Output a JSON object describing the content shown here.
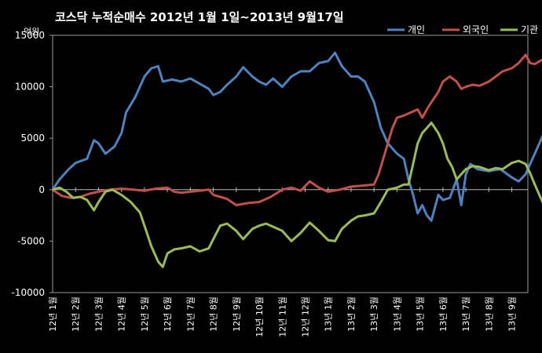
{
  "chart_data": {
    "type": "line",
    "title": "코스닥  누적순매수 2012년 1월 1일~2013년 9월17일",
    "unit": "억원",
    "x_categories": [
      "12년 1월",
      "12년 2월",
      "12년 3월",
      "12년 4월",
      "12년 5월",
      "12년 6월",
      "12년 7월",
      "12년 8월",
      "12년 9월",
      "12년 10월",
      "12년 11월",
      "12년 12월",
      "13년 1월",
      "13년 2월",
      "13년 3월",
      "13년 4월",
      "13년 5월",
      "13년 6월",
      "13년 7월",
      "13년 8월",
      "13년 9월"
    ],
    "ylim": [
      -10000,
      15000
    ],
    "yticks": [
      15000,
      10000,
      5000,
      0,
      -5000,
      -10000
    ],
    "grid": false,
    "legend_position": "top-right",
    "series": [
      {
        "name": "개인",
        "color": "#4f81bd",
        "points": [
          [
            0,
            0
          ],
          [
            0.3,
            1000
          ],
          [
            0.7,
            2000
          ],
          [
            1,
            2600
          ],
          [
            1.5,
            3000
          ],
          [
            1.8,
            4800
          ],
          [
            2,
            4500
          ],
          [
            2.3,
            3500
          ],
          [
            2.7,
            4200
          ],
          [
            3,
            5500
          ],
          [
            3.2,
            7500
          ],
          [
            3.6,
            9000
          ],
          [
            4,
            11000
          ],
          [
            4.3,
            11800
          ],
          [
            4.6,
            12000
          ],
          [
            4.8,
            10500
          ],
          [
            5.2,
            10700
          ],
          [
            5.6,
            10500
          ],
          [
            6,
            10800
          ],
          [
            6.4,
            10300
          ],
          [
            6.8,
            9800
          ],
          [
            7,
            9200
          ],
          [
            7.3,
            9500
          ],
          [
            7.6,
            10200
          ],
          [
            8,
            11000
          ],
          [
            8.3,
            11900
          ],
          [
            8.7,
            11000
          ],
          [
            9,
            10500
          ],
          [
            9.3,
            10200
          ],
          [
            9.6,
            10800
          ],
          [
            10,
            10000
          ],
          [
            10.4,
            11000
          ],
          [
            10.8,
            11500
          ],
          [
            11.2,
            11500
          ],
          [
            11.6,
            12300
          ],
          [
            12,
            12500
          ],
          [
            12.3,
            13300
          ],
          [
            12.6,
            12000
          ],
          [
            13,
            11000
          ],
          [
            13.3,
            11000
          ],
          [
            13.6,
            10500
          ],
          [
            14,
            8500
          ],
          [
            14.3,
            6000
          ],
          [
            14.6,
            4500
          ],
          [
            15,
            3500
          ],
          [
            15.3,
            3000
          ],
          [
            15.5,
            1000
          ],
          [
            15.7,
            -500
          ],
          [
            15.9,
            -2300
          ],
          [
            16.1,
            -1500
          ],
          [
            16.3,
            -2500
          ],
          [
            16.5,
            -3000
          ],
          [
            16.8,
            -500
          ],
          [
            17,
            -1000
          ],
          [
            17.3,
            -800
          ],
          [
            17.6,
            1000
          ],
          [
            17.8,
            -1500
          ],
          [
            18,
            1500
          ],
          [
            18.2,
            2500
          ],
          [
            18.5,
            2000
          ],
          [
            19,
            1800
          ],
          [
            19.5,
            2000
          ],
          [
            20,
            1200
          ],
          [
            20.3,
            800
          ],
          [
            20.6,
            1500
          ],
          [
            20.8,
            2500
          ],
          [
            21,
            3500
          ],
          [
            21.3,
            5000
          ],
          [
            21.5,
            6000
          ],
          [
            21.7,
            5500
          ]
        ]
      },
      {
        "name": "외국인",
        "color": "#c0504d",
        "points": [
          [
            0,
            0
          ],
          [
            0.4,
            -600
          ],
          [
            0.8,
            -800
          ],
          [
            1.2,
            -700
          ],
          [
            1.6,
            -400
          ],
          [
            2,
            -200
          ],
          [
            2.5,
            0
          ],
          [
            3,
            100
          ],
          [
            3.5,
            0
          ],
          [
            4,
            -100
          ],
          [
            4.5,
            100
          ],
          [
            5,
            200
          ],
          [
            5.3,
            -200
          ],
          [
            5.6,
            -300
          ],
          [
            6,
            -200
          ],
          [
            6.4,
            -100
          ],
          [
            6.8,
            0
          ],
          [
            7,
            -500
          ],
          [
            7.3,
            -700
          ],
          [
            7.6,
            -900
          ],
          [
            8,
            -1500
          ],
          [
            8.5,
            -1300
          ],
          [
            9,
            -1200
          ],
          [
            9.5,
            -700
          ],
          [
            10,
            0
          ],
          [
            10.4,
            200
          ],
          [
            10.8,
            -100
          ],
          [
            11.2,
            800
          ],
          [
            11.6,
            200
          ],
          [
            12,
            -200
          ],
          [
            12.5,
            0
          ],
          [
            13,
            300
          ],
          [
            13.5,
            400
          ],
          [
            14,
            500
          ],
          [
            14.2,
            1500
          ],
          [
            14.4,
            3000
          ],
          [
            14.6,
            4500
          ],
          [
            14.8,
            6000
          ],
          [
            15,
            7000
          ],
          [
            15.3,
            7200
          ],
          [
            15.6,
            7500
          ],
          [
            15.9,
            7800
          ],
          [
            16.1,
            7000
          ],
          [
            16.3,
            7800
          ],
          [
            16.5,
            8500
          ],
          [
            16.8,
            9500
          ],
          [
            17,
            10500
          ],
          [
            17.3,
            11000
          ],
          [
            17.6,
            10500
          ],
          [
            17.8,
            9800
          ],
          [
            18,
            10000
          ],
          [
            18.3,
            10200
          ],
          [
            18.6,
            10100
          ],
          [
            19,
            10500
          ],
          [
            19.3,
            11000
          ],
          [
            19.6,
            11500
          ],
          [
            20,
            11800
          ],
          [
            20.3,
            12300
          ],
          [
            20.6,
            13100
          ],
          [
            20.8,
            12300
          ],
          [
            21,
            12200
          ],
          [
            21.3,
            12600
          ],
          [
            21.6,
            12800
          ],
          [
            21.7,
            12900
          ]
        ]
      },
      {
        "name": "기관",
        "color": "#9bbb59",
        "points": [
          [
            0,
            0
          ],
          [
            0.3,
            200
          ],
          [
            0.6,
            -200
          ],
          [
            0.9,
            -800
          ],
          [
            1.2,
            -700
          ],
          [
            1.5,
            -1000
          ],
          [
            1.8,
            -2000
          ],
          [
            2,
            -1200
          ],
          [
            2.3,
            -200
          ],
          [
            2.6,
            0
          ],
          [
            3,
            -500
          ],
          [
            3.4,
            -1200
          ],
          [
            3.8,
            -2200
          ],
          [
            4,
            -3500
          ],
          [
            4.3,
            -5500
          ],
          [
            4.6,
            -7000
          ],
          [
            4.8,
            -7500
          ],
          [
            5,
            -6200
          ],
          [
            5.3,
            -5800
          ],
          [
            5.6,
            -5700
          ],
          [
            6,
            -5500
          ],
          [
            6.4,
            -6000
          ],
          [
            6.8,
            -5700
          ],
          [
            7,
            -4800
          ],
          [
            7.3,
            -3500
          ],
          [
            7.6,
            -3300
          ],
          [
            8,
            -4000
          ],
          [
            8.3,
            -4800
          ],
          [
            8.7,
            -3800
          ],
          [
            9,
            -3500
          ],
          [
            9.3,
            -3300
          ],
          [
            9.6,
            -3600
          ],
          [
            10,
            -4000
          ],
          [
            10.4,
            -5000
          ],
          [
            10.8,
            -4200
          ],
          [
            11.2,
            -3200
          ],
          [
            11.6,
            -4000
          ],
          [
            12,
            -4900
          ],
          [
            12.3,
            -5000
          ],
          [
            12.6,
            -3800
          ],
          [
            13,
            -3000
          ],
          [
            13.3,
            -2600
          ],
          [
            13.6,
            -2500
          ],
          [
            14,
            -2300
          ],
          [
            14.3,
            -1200
          ],
          [
            14.6,
            0
          ],
          [
            15,
            200
          ],
          [
            15.3,
            500
          ],
          [
            15.5,
            500
          ],
          [
            15.7,
            2500
          ],
          [
            15.9,
            4500
          ],
          [
            16.1,
            5500
          ],
          [
            16.3,
            6000
          ],
          [
            16.5,
            6500
          ],
          [
            16.8,
            5500
          ],
          [
            17,
            4500
          ],
          [
            17.2,
            3000
          ],
          [
            17.4,
            2200
          ],
          [
            17.6,
            1000
          ],
          [
            17.8,
            1500
          ],
          [
            18,
            2000
          ],
          [
            18.3,
            2300
          ],
          [
            18.6,
            2200
          ],
          [
            19,
            1900
          ],
          [
            19.3,
            2100
          ],
          [
            19.6,
            2000
          ],
          [
            20,
            2600
          ],
          [
            20.3,
            2800
          ],
          [
            20.6,
            2500
          ],
          [
            20.8,
            1600
          ],
          [
            21,
            500
          ],
          [
            21.2,
            -500
          ],
          [
            21.4,
            -1500
          ],
          [
            21.7,
            -1700
          ]
        ]
      }
    ]
  }
}
